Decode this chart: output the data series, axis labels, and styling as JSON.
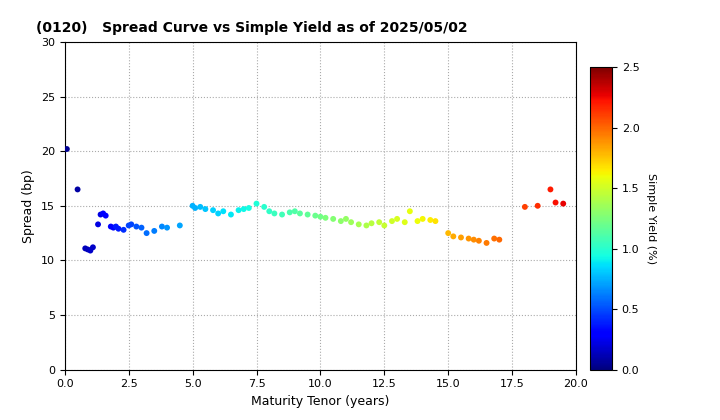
{
  "title": "(0120)   Spread Curve vs Simple Yield as of 2025/05/02",
  "xlabel": "Maturity Tenor (years)",
  "ylabel": "Spread (bp)",
  "colorbar_label": "Simple Yield (%)",
  "xlim": [
    0,
    20
  ],
  "ylim": [
    0,
    30
  ],
  "xticks": [
    0.0,
    2.5,
    5.0,
    7.5,
    10.0,
    12.5,
    15.0,
    17.5,
    20.0
  ],
  "yticks": [
    0,
    5,
    10,
    15,
    20,
    25,
    30
  ],
  "cmap": "jet",
  "vmin": 0.0,
  "vmax": 2.5,
  "points": [
    [
      0.08,
      20.2,
      0.04
    ],
    [
      0.5,
      16.5,
      0.08
    ],
    [
      0.8,
      11.1,
      0.13
    ],
    [
      0.9,
      11.0,
      0.13
    ],
    [
      1.0,
      10.9,
      0.16
    ],
    [
      1.1,
      11.2,
      0.16
    ],
    [
      1.3,
      13.3,
      0.22
    ],
    [
      1.4,
      14.2,
      0.22
    ],
    [
      1.5,
      14.3,
      0.28
    ],
    [
      1.6,
      14.1,
      0.28
    ],
    [
      1.8,
      13.1,
      0.32
    ],
    [
      1.9,
      13.0,
      0.32
    ],
    [
      2.0,
      13.1,
      0.38
    ],
    [
      2.1,
      12.9,
      0.38
    ],
    [
      2.3,
      12.8,
      0.42
    ],
    [
      2.5,
      13.2,
      0.48
    ],
    [
      2.6,
      13.3,
      0.48
    ],
    [
      2.8,
      13.1,
      0.52
    ],
    [
      3.0,
      13.0,
      0.55
    ],
    [
      3.2,
      12.5,
      0.58
    ],
    [
      3.5,
      12.7,
      0.62
    ],
    [
      3.8,
      13.1,
      0.65
    ],
    [
      4.0,
      13.0,
      0.68
    ],
    [
      4.5,
      13.2,
      0.72
    ],
    [
      5.0,
      15.0,
      0.75
    ],
    [
      5.1,
      14.8,
      0.75
    ],
    [
      5.3,
      14.9,
      0.78
    ],
    [
      5.5,
      14.7,
      0.8
    ],
    [
      5.8,
      14.6,
      0.83
    ],
    [
      6.0,
      14.3,
      0.83
    ],
    [
      6.2,
      14.5,
      0.86
    ],
    [
      6.5,
      14.2,
      0.88
    ],
    [
      6.8,
      14.6,
      0.9
    ],
    [
      7.0,
      14.7,
      0.92
    ],
    [
      7.2,
      14.8,
      0.94
    ],
    [
      7.5,
      15.2,
      0.97
    ],
    [
      7.8,
      14.9,
      1.0
    ],
    [
      8.0,
      14.5,
      1.02
    ],
    [
      8.2,
      14.3,
      1.05
    ],
    [
      8.5,
      14.2,
      1.07
    ],
    [
      8.8,
      14.4,
      1.1
    ],
    [
      9.0,
      14.5,
      1.12
    ],
    [
      9.2,
      14.3,
      1.15
    ],
    [
      9.5,
      14.2,
      1.17
    ],
    [
      9.8,
      14.1,
      1.2
    ],
    [
      10.0,
      14.0,
      1.22
    ],
    [
      10.2,
      13.9,
      1.25
    ],
    [
      10.5,
      13.8,
      1.27
    ],
    [
      10.8,
      13.6,
      1.3
    ],
    [
      11.0,
      13.8,
      1.32
    ],
    [
      11.2,
      13.5,
      1.35
    ],
    [
      11.5,
      13.3,
      1.38
    ],
    [
      11.8,
      13.2,
      1.4
    ],
    [
      12.0,
      13.4,
      1.43
    ],
    [
      12.3,
      13.5,
      1.46
    ],
    [
      12.5,
      13.2,
      1.48
    ],
    [
      12.8,
      13.6,
      1.5
    ],
    [
      13.0,
      13.8,
      1.53
    ],
    [
      13.3,
      13.5,
      1.55
    ],
    [
      13.5,
      14.5,
      1.58
    ],
    [
      13.8,
      13.6,
      1.6
    ],
    [
      14.0,
      13.8,
      1.62
    ],
    [
      14.3,
      13.7,
      1.65
    ],
    [
      14.5,
      13.6,
      1.67
    ],
    [
      15.0,
      12.5,
      1.78
    ],
    [
      15.2,
      12.2,
      1.82
    ],
    [
      15.5,
      12.1,
      1.85
    ],
    [
      15.8,
      12.0,
      1.88
    ],
    [
      16.0,
      11.9,
      1.9
    ],
    [
      16.2,
      11.8,
      1.93
    ],
    [
      16.5,
      11.6,
      1.95
    ],
    [
      16.8,
      12.0,
      1.98
    ],
    [
      17.0,
      11.9,
      2.0
    ],
    [
      18.0,
      14.9,
      2.1
    ],
    [
      18.5,
      15.0,
      2.15
    ],
    [
      19.0,
      16.5,
      2.2
    ],
    [
      19.2,
      15.3,
      2.23
    ],
    [
      19.5,
      15.2,
      2.27
    ]
  ]
}
